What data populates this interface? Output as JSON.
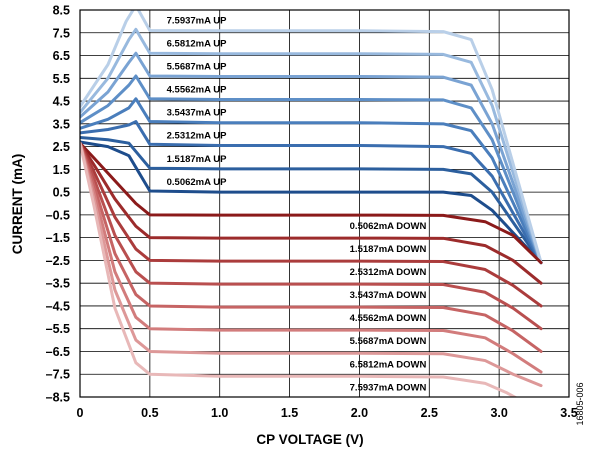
{
  "chart_data": {
    "type": "line",
    "xlabel": "CP VOLTAGE (V)",
    "ylabel": "CURRENT (mA)",
    "xlim": [
      0,
      3.5
    ],
    "ylim": [
      -8.5,
      8.5
    ],
    "x_ticks": [
      0,
      0.5,
      1.0,
      1.5,
      2.0,
      2.5,
      3.0,
      3.5
    ],
    "x_tick_labels": [
      "0",
      "0.5",
      "1.0",
      "1.5",
      "2.0",
      "2.5",
      "3.0",
      "3.5"
    ],
    "y_ticks": [
      8.5,
      7.5,
      6.5,
      5.5,
      4.5,
      3.5,
      2.5,
      1.5,
      0.5,
      -0.5,
      -1.5,
      -2.5,
      -3.5,
      -4.5,
      -5.5,
      -6.5,
      -7.5,
      -8.5
    ],
    "y_tick_labels": [
      "8.5",
      "7.5",
      "6.5",
      "5.5",
      "4.5",
      "3.5",
      "2.5",
      "1.5",
      "0.5",
      "–0.5",
      "–1.5",
      "–2.5",
      "–3.5",
      "–4.5",
      "–5.5",
      "–6.5",
      "–7.5",
      "–8.5"
    ],
    "grid": true,
    "figure_id": "16805-006",
    "series": [
      {
        "name": "0.5062mA UP",
        "color": "#1e4d8c",
        "x": [
          0,
          0.2,
          0.35,
          0.5,
          1.0,
          2.0,
          2.6,
          2.8,
          2.95,
          3.3
        ],
        "y": [
          2.7,
          2.5,
          2.1,
          0.55,
          0.5,
          0.5,
          0.5,
          0.35,
          -0.3,
          -2.6
        ]
      },
      {
        "name": "1.5187mA UP",
        "color": "#2c5f9e",
        "x": [
          0,
          0.2,
          0.35,
          0.5,
          1.0,
          2.0,
          2.6,
          2.8,
          2.95,
          3.3
        ],
        "y": [
          2.9,
          2.8,
          2.65,
          1.55,
          1.52,
          1.52,
          1.5,
          1.3,
          0.5,
          -2.6
        ]
      },
      {
        "name": "2.5312mA UP",
        "color": "#3b6eaf",
        "x": [
          0,
          0.2,
          0.35,
          0.4,
          0.5,
          1.0,
          2.0,
          2.6,
          2.8,
          2.95,
          3.3
        ],
        "y": [
          3.1,
          3.25,
          3.45,
          3.6,
          2.6,
          2.55,
          2.55,
          2.5,
          2.2,
          1.2,
          -2.6
        ]
      },
      {
        "name": "3.5437mA UP",
        "color": "#4a7ebc",
        "x": [
          0,
          0.2,
          0.35,
          0.4,
          0.5,
          1.0,
          2.0,
          2.6,
          2.8,
          2.95,
          3.3
        ],
        "y": [
          3.3,
          3.7,
          4.2,
          4.6,
          3.6,
          3.55,
          3.55,
          3.5,
          3.2,
          2.0,
          -2.6
        ]
      },
      {
        "name": "4.5562mA UP",
        "color": "#5e8fc7",
        "x": [
          0,
          0.2,
          0.35,
          0.4,
          0.5,
          1.0,
          2.0,
          2.6,
          2.8,
          2.95,
          3.3
        ],
        "y": [
          3.55,
          4.3,
          5.2,
          5.6,
          4.6,
          4.57,
          4.57,
          4.55,
          4.2,
          2.8,
          -2.6
        ]
      },
      {
        "name": "5.5687mA UP",
        "color": "#7aa3d3",
        "x": [
          0,
          0.2,
          0.35,
          0.4,
          0.5,
          1.0,
          2.0,
          2.6,
          2.8,
          2.95,
          3.3
        ],
        "y": [
          3.8,
          4.9,
          6.2,
          6.6,
          5.6,
          5.58,
          5.58,
          5.55,
          5.2,
          3.5,
          -2.6
        ]
      },
      {
        "name": "6.5812mA UP",
        "color": "#98b9de",
        "x": [
          0,
          0.2,
          0.35,
          0.4,
          0.5,
          1.0,
          2.0,
          2.6,
          2.8,
          2.95,
          3.3
        ],
        "y": [
          4.0,
          5.5,
          7.2,
          7.65,
          6.6,
          6.58,
          6.58,
          6.55,
          6.2,
          4.3,
          -2.6
        ]
      },
      {
        "name": "7.5937mA UP",
        "color": "#b9cfe8",
        "x": [
          0,
          0.2,
          0.33,
          0.4,
          0.5,
          1.0,
          2.0,
          2.6,
          2.8,
          2.95,
          3.3
        ],
        "y": [
          4.25,
          6.1,
          8.0,
          8.7,
          7.6,
          7.59,
          7.59,
          7.55,
          7.2,
          5.0,
          -2.6
        ]
      },
      {
        "name": "0.5062mA DOWN",
        "color": "#8b1a1a",
        "x": [
          0,
          0.1,
          0.25,
          0.4,
          0.5,
          1.0,
          2.0,
          2.6,
          2.9,
          3.1,
          3.3
        ],
        "y": [
          2.65,
          2.0,
          1.0,
          0.0,
          -0.5,
          -0.51,
          -0.51,
          -0.52,
          -0.8,
          -1.4,
          -2.6
        ]
      },
      {
        "name": "1.5187mA DOWN",
        "color": "#9c2b2b",
        "x": [
          0,
          0.1,
          0.25,
          0.4,
          0.5,
          1.0,
          2.0,
          2.6,
          2.9,
          3.1,
          3.3
        ],
        "y": [
          2.65,
          1.7,
          0.2,
          -1.0,
          -1.5,
          -1.52,
          -1.52,
          -1.53,
          -1.85,
          -2.5,
          -3.5
        ]
      },
      {
        "name": "2.5312mA DOWN",
        "color": "#ab3c3c",
        "x": [
          0,
          0.1,
          0.25,
          0.4,
          0.5,
          1.0,
          2.0,
          2.6,
          2.9,
          3.1,
          3.3
        ],
        "y": [
          2.65,
          1.4,
          -0.6,
          -2.0,
          -2.5,
          -2.53,
          -2.53,
          -2.55,
          -2.9,
          -3.6,
          -4.5
        ]
      },
      {
        "name": "3.5437mA DOWN",
        "color": "#b94f4f",
        "x": [
          0,
          0.1,
          0.25,
          0.4,
          0.5,
          1.0,
          2.0,
          2.6,
          2.9,
          3.1,
          3.3
        ],
        "y": [
          2.65,
          1.1,
          -1.4,
          -3.0,
          -3.5,
          -3.54,
          -3.54,
          -3.56,
          -3.9,
          -4.6,
          -5.5
        ]
      },
      {
        "name": "4.5562mA DOWN",
        "color": "#c66464",
        "x": [
          0,
          0.1,
          0.25,
          0.4,
          0.5,
          1.0,
          2.0,
          2.6,
          2.9,
          3.1,
          3.3
        ],
        "y": [
          2.65,
          0.8,
          -2.2,
          -4.0,
          -4.5,
          -4.55,
          -4.55,
          -4.57,
          -4.9,
          -5.6,
          -6.5
        ]
      },
      {
        "name": "5.5687mA DOWN",
        "color": "#d27c7c",
        "x": [
          0,
          0.1,
          0.25,
          0.4,
          0.5,
          1.0,
          2.0,
          2.6,
          2.9,
          3.1,
          3.3
        ],
        "y": [
          2.65,
          0.5,
          -3.0,
          -5.0,
          -5.5,
          -5.56,
          -5.56,
          -5.58,
          -5.9,
          -6.6,
          -7.4
        ]
      },
      {
        "name": "6.5812mA DOWN",
        "color": "#dd9898",
        "x": [
          0,
          0.1,
          0.25,
          0.4,
          0.5,
          1.0,
          2.0,
          2.6,
          2.9,
          3.1,
          3.3
        ],
        "y": [
          2.65,
          0.2,
          -3.8,
          -6.0,
          -6.5,
          -6.58,
          -6.58,
          -6.6,
          -6.9,
          -7.5,
          -8.0
        ]
      },
      {
        "name": "7.5937mA DOWN",
        "color": "#e8b8b8",
        "x": [
          0,
          0.1,
          0.25,
          0.4,
          0.5,
          1.0,
          2.0,
          2.6,
          2.9,
          3.05,
          3.2
        ],
        "y": [
          2.65,
          -0.1,
          -4.6,
          -7.0,
          -7.5,
          -7.59,
          -7.59,
          -7.62,
          -7.9,
          -8.3,
          -8.8
        ]
      }
    ]
  }
}
